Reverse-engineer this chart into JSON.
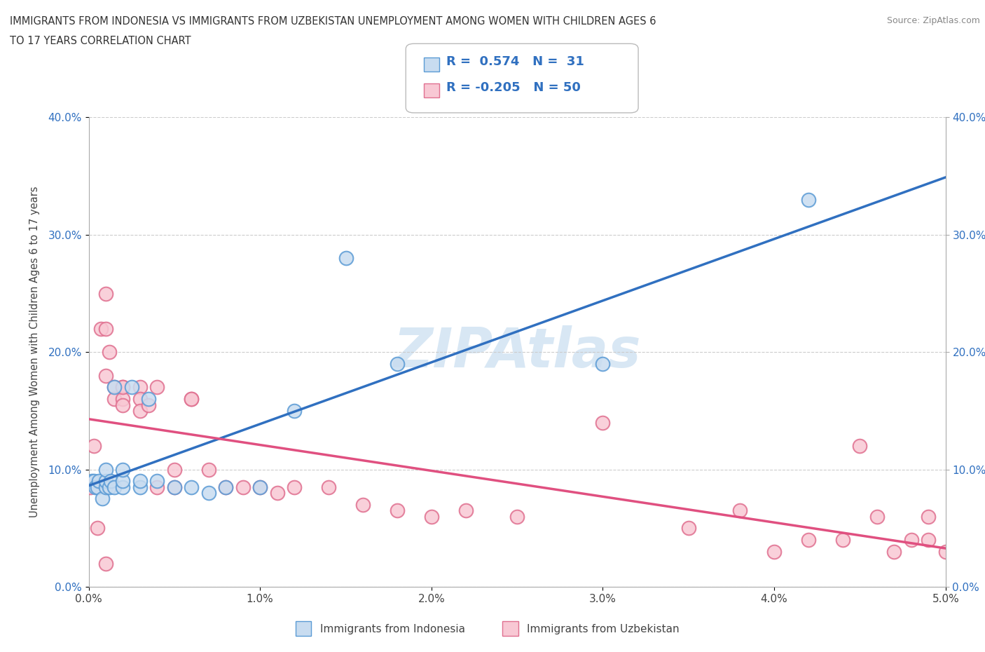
{
  "title_line1": "IMMIGRANTS FROM INDONESIA VS IMMIGRANTS FROM UZBEKISTAN UNEMPLOYMENT AMONG WOMEN WITH CHILDREN AGES 6",
  "title_line2": "TO 17 YEARS CORRELATION CHART",
  "source": "Source: ZipAtlas.com",
  "ylabel_label": "Unemployment Among Women with Children Ages 6 to 17 years",
  "legend_label1": "Immigrants from Indonesia",
  "legend_label2": "Immigrants from Uzbekistan",
  "r1": 0.574,
  "n1": 31,
  "r2": -0.205,
  "n2": 50,
  "color1_fill": "#c8dcf0",
  "color1_edge": "#5b9bd5",
  "color2_fill": "#f8c8d4",
  "color2_edge": "#e07090",
  "line_color1": "#3070c0",
  "line_color2": "#e05080",
  "xmin": 0.0,
  "xmax": 0.05,
  "ymin": 0.0,
  "ymax": 0.4,
  "watermark": "ZIPAtlas",
  "indonesia_x": [
    0.0002,
    0.0003,
    0.0004,
    0.0005,
    0.0006,
    0.0008,
    0.001,
    0.001,
    0.001,
    0.0012,
    0.0013,
    0.0015,
    0.0015,
    0.002,
    0.002,
    0.002,
    0.0025,
    0.003,
    0.003,
    0.0035,
    0.004,
    0.005,
    0.006,
    0.007,
    0.008,
    0.01,
    0.012,
    0.015,
    0.018,
    0.03,
    0.042
  ],
  "indonesia_y": [
    0.09,
    0.09,
    0.085,
    0.085,
    0.09,
    0.075,
    0.085,
    0.09,
    0.1,
    0.085,
    0.09,
    0.085,
    0.17,
    0.085,
    0.09,
    0.1,
    0.17,
    0.085,
    0.09,
    0.16,
    0.09,
    0.085,
    0.085,
    0.08,
    0.085,
    0.085,
    0.15,
    0.28,
    0.19,
    0.19,
    0.33
  ],
  "uzbekistan_x": [
    0.0001,
    0.0003,
    0.0005,
    0.0007,
    0.001,
    0.001,
    0.001,
    0.001,
    0.0012,
    0.0015,
    0.0015,
    0.002,
    0.002,
    0.002,
    0.002,
    0.003,
    0.003,
    0.003,
    0.0035,
    0.004,
    0.004,
    0.005,
    0.005,
    0.006,
    0.006,
    0.007,
    0.008,
    0.009,
    0.01,
    0.011,
    0.012,
    0.014,
    0.016,
    0.018,
    0.02,
    0.022,
    0.025,
    0.03,
    0.035,
    0.038,
    0.04,
    0.042,
    0.044,
    0.045,
    0.046,
    0.047,
    0.048,
    0.049,
    0.049,
    0.05
  ],
  "uzbekistan_y": [
    0.085,
    0.12,
    0.05,
    0.22,
    0.25,
    0.22,
    0.18,
    0.02,
    0.2,
    0.17,
    0.16,
    0.17,
    0.16,
    0.155,
    0.17,
    0.17,
    0.16,
    0.15,
    0.155,
    0.17,
    0.085,
    0.1,
    0.085,
    0.16,
    0.16,
    0.1,
    0.085,
    0.085,
    0.085,
    0.08,
    0.085,
    0.085,
    0.07,
    0.065,
    0.06,
    0.065,
    0.06,
    0.14,
    0.05,
    0.065,
    0.03,
    0.04,
    0.04,
    0.12,
    0.06,
    0.03,
    0.04,
    0.06,
    0.04,
    0.03
  ]
}
